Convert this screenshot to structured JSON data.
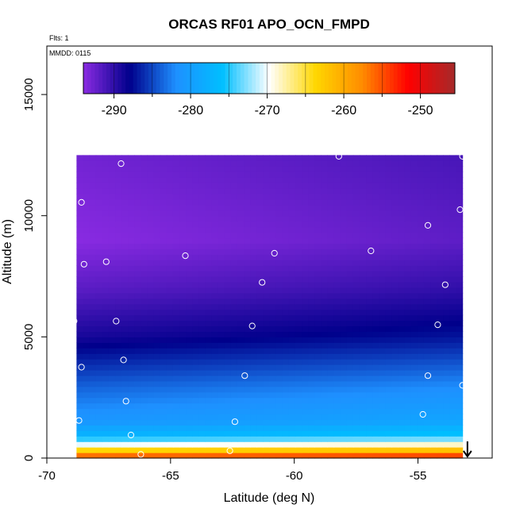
{
  "chart_data": {
    "type": "heatmap",
    "title": "ORCAS RF01 APO_OCN_FMPD",
    "subtitle": "Flts: 1",
    "annotation": "MMDD: 0115",
    "xlabel": "Latitude (deg N)",
    "ylabel": "Altitude (m)",
    "xlim": [
      -70,
      -52
    ],
    "ylim": [
      0,
      17000
    ],
    "x_ticks": [
      -70,
      -65,
      -60,
      -55
    ],
    "y_ticks": [
      0,
      5000,
      10000,
      15000
    ],
    "x_tick_labels": [
      "-70",
      "-65",
      "-60",
      "-55"
    ],
    "y_tick_labels": [
      "0",
      "5000",
      "10000",
      "15000"
    ],
    "colorbar": {
      "range": [
        -294,
        -245.5
      ],
      "ticks": [
        -290,
        -280,
        -270,
        -260,
        -250
      ],
      "tick_labels": [
        "-290",
        "-280",
        "-270",
        "-260",
        "-250"
      ],
      "colors": [
        "#8a2be2",
        "#00008b",
        "#1e90ff",
        "#00bfff",
        "#ffffff",
        "#ffd700",
        "#ff8c00",
        "#ff0000",
        "#a52a2a"
      ],
      "placement": "top"
    },
    "field_domain": {
      "lat_range": [
        -68.8,
        -53.2
      ],
      "alt_range": [
        0,
        12500
      ]
    },
    "field_anchors": [
      {
        "alt": 0,
        "value": -252
      },
      {
        "alt": 500,
        "value": -268
      },
      {
        "alt": 900,
        "value": -276
      },
      {
        "alt": 1500,
        "value": -280
      },
      {
        "alt": 3000,
        "value": -283
      },
      {
        "alt": 5000,
        "value": -288
      },
      {
        "alt": 7000,
        "value": -291
      },
      {
        "alt": 9000,
        "value": -293
      },
      {
        "alt": 12500,
        "value": -292
      }
    ],
    "observations": [
      {
        "lat": -66.2,
        "alt": 150
      },
      {
        "lat": -62.6,
        "alt": 300
      },
      {
        "lat": -66.6,
        "alt": 950
      },
      {
        "lat": -68.7,
        "alt": 1550
      },
      {
        "lat": -62.4,
        "alt": 1500
      },
      {
        "lat": -66.8,
        "alt": 2350
      },
      {
        "lat": -54.8,
        "alt": 1800
      },
      {
        "lat": -68.6,
        "alt": 3750
      },
      {
        "lat": -66.9,
        "alt": 4050
      },
      {
        "lat": -62.0,
        "alt": 3400
      },
      {
        "lat": -54.6,
        "alt": 3400
      },
      {
        "lat": -53.2,
        "alt": 3000
      },
      {
        "lat": -68.9,
        "alt": 5650
      },
      {
        "lat": -67.2,
        "alt": 5650
      },
      {
        "lat": -61.7,
        "alt": 5450
      },
      {
        "lat": -54.2,
        "alt": 5500
      },
      {
        "lat": -61.3,
        "alt": 7250
      },
      {
        "lat": -53.9,
        "alt": 7150
      },
      {
        "lat": -68.5,
        "alt": 8000
      },
      {
        "lat": -67.6,
        "alt": 8100
      },
      {
        "lat": -64.4,
        "alt": 8350
      },
      {
        "lat": -60.8,
        "alt": 8450
      },
      {
        "lat": -56.9,
        "alt": 8550
      },
      {
        "lat": -54.6,
        "alt": 9600
      },
      {
        "lat": -53.3,
        "alt": 10250
      },
      {
        "lat": -68.6,
        "alt": 10550
      },
      {
        "lat": -67.0,
        "alt": 12150
      },
      {
        "lat": -58.2,
        "alt": 12450
      },
      {
        "lat": -53.2,
        "alt": 12450
      }
    ],
    "arrow": {
      "lat": -53.0,
      "direction": "down"
    },
    "grid": false
  }
}
